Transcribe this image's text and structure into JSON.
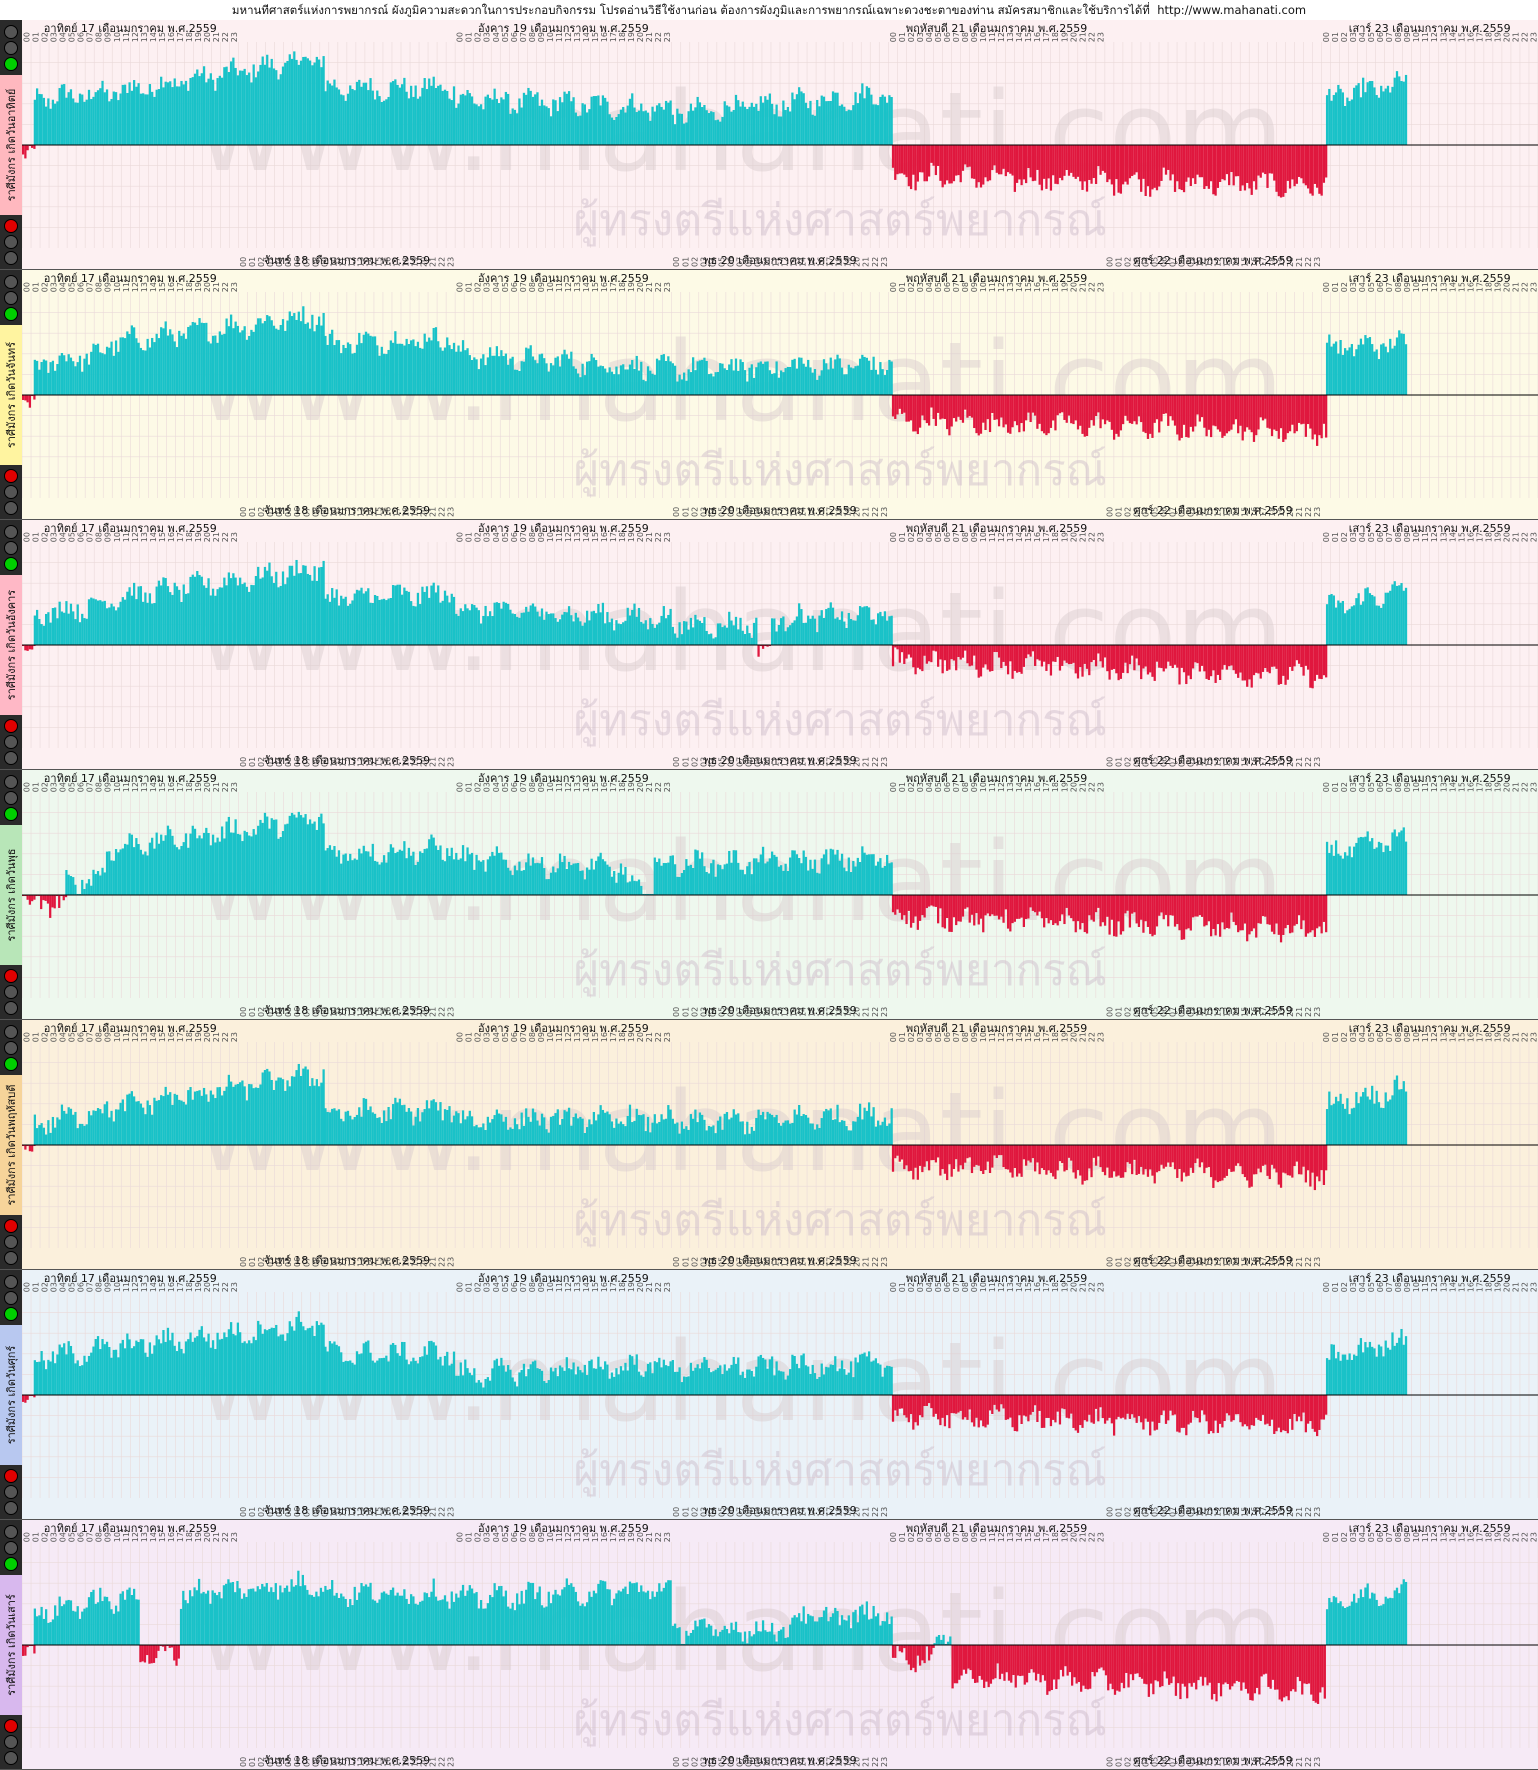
{
  "header": {
    "title": "มหานทีศาสตร์แห่งการพยากรณ์ ผังภูมิความสะดวกในการประกอบกิจกรรม โปรดอ่านวิธีใช้งานก่อน ต้องการผังภูมิและการพยากรณ์เฉพาะดวงชะตาของท่าน สมัครสมาชิกและใช้บริการได้ที่",
    "url": "http://www.mahanati.com"
  },
  "watermark": {
    "site_text": "www.mahanati.com",
    "thai_text": "ผู้ทรงตรีแห่งศาสตร์พยากรณ์"
  },
  "colors": {
    "positive": "#19c2c8",
    "positive_line": "#00a9b0",
    "negative": "#e0173e",
    "negative_line": "#c80030",
    "lamp_green": "#00d000",
    "lamp_red": "#e00000",
    "lamp_off": "#555555"
  },
  "chart_data": {
    "type": "bar",
    "hours_per_day": 24,
    "hour_labels": [
      "00",
      "01",
      "02",
      "03",
      "04",
      "05",
      "06",
      "07",
      "08",
      "09",
      "10",
      "11",
      "12",
      "13",
      "14",
      "15",
      "16",
      "17",
      "18",
      "19",
      "20",
      "21",
      "22",
      "23"
    ],
    "top_days": [
      {
        "label": "อาทิตย์ 17 เดือนมกราคม พ.ศ.2559",
        "start_hour": 0
      },
      {
        "label": "อังคาร 19 เดือนมกราคม พ.ศ.2559",
        "start_hour": 48
      },
      {
        "label": "พฤหัสบดี 21 เดือนมกราคม พ.ศ.2559",
        "start_hour": 96
      },
      {
        "label": "เสาร์ 23 เดือนมกราคม พ.ศ.2559",
        "start_hour": 144
      }
    ],
    "bottom_days": [
      {
        "label": "จันทร์ 18 เดือนมกราคม พ.ศ.2559",
        "start_hour": 24
      },
      {
        "label": "พุธ 20 เดือนมกราคม พ.ศ.2559",
        "start_hour": 72
      },
      {
        "label": "ศุกร์ 22 เดือนมกราคม พ.ศ.2559",
        "start_hour": 120
      }
    ],
    "ylim": [
      -1,
      1
    ],
    "panels": [
      {
        "label": "ราศีมังกร เกิดวันอาทิตย์",
        "bg": "#fdf0f2",
        "tab": "#ffb8bf",
        "segments": [
          [
            0,
            1.3,
            -0.12,
            -0.12
          ],
          [
            1.3,
            9.3,
            0.45,
            0.5
          ],
          [
            9.3,
            33.5,
            0.5,
            0.85
          ],
          [
            33.5,
            48,
            0.55,
            0.55
          ],
          [
            48,
            72,
            0.45,
            0.35
          ],
          [
            72,
            96.4,
            0.3,
            0.5
          ],
          [
            96.4,
            144.5,
            -0.3,
            -0.4
          ],
          [
            144.5,
            153.5,
            0.45,
            0.6
          ]
        ]
      },
      {
        "label": "ราศีมังกร เกิดวันจันทร์",
        "bg": "#fdfae6",
        "tab": "#fff4a0",
        "segments": [
          [
            0,
            1.3,
            -0.12,
            -0.12
          ],
          [
            1.3,
            9.3,
            0.3,
            0.4
          ],
          [
            9.3,
            33.5,
            0.5,
            0.78
          ],
          [
            33.5,
            48,
            0.5,
            0.55
          ],
          [
            48,
            72,
            0.4,
            0.25
          ],
          [
            72,
            96.4,
            0.25,
            0.3
          ],
          [
            96.4,
            144.5,
            -0.25,
            -0.35
          ],
          [
            144.5,
            153.5,
            0.45,
            0.5
          ]
        ]
      },
      {
        "label": "ราศีมังกร เกิดวันอังคาร",
        "bg": "#fdf0f2",
        "tab": "#ffb8c6",
        "segments": [
          [
            0,
            1.3,
            -0.02,
            -0.02
          ],
          [
            1.3,
            9.3,
            0.3,
            0.4
          ],
          [
            9.3,
            33.5,
            0.45,
            0.75
          ],
          [
            33.5,
            48,
            0.45,
            0.5
          ],
          [
            48,
            72,
            0.35,
            0.25
          ],
          [
            72,
            81.5,
            0.2,
            0.2
          ],
          [
            81.5,
            83,
            -0.05,
            -0.05
          ],
          [
            83,
            96.4,
            0.25,
            0.3
          ],
          [
            96.4,
            144.5,
            -0.15,
            -0.3
          ],
          [
            144.5,
            153.5,
            0.35,
            0.55
          ]
        ]
      },
      {
        "label": "ราศีมังกร เกิดวันพุธ",
        "bg": "#eef8ee",
        "tab": "#b8e6b8",
        "segments": [
          [
            0,
            4.8,
            -0.08,
            -0.08
          ],
          [
            4.8,
            9.3,
            0.1,
            0.2
          ],
          [
            9.3,
            33.5,
            0.45,
            0.75
          ],
          [
            33.5,
            48,
            0.4,
            0.45
          ],
          [
            48,
            67,
            0.35,
            0.25
          ],
          [
            67,
            70,
            0.05,
            0.05
          ],
          [
            70,
            96.4,
            0.3,
            0.35
          ],
          [
            96.4,
            144.5,
            -0.2,
            -0.35
          ],
          [
            144.5,
            153.5,
            0.4,
            0.55
          ]
        ]
      },
      {
        "label": "ราศีมังกร เกิดวันพฤหัสบดี",
        "bg": "#fbf0dc",
        "tab": "#f6d49a",
        "segments": [
          [
            0,
            1.3,
            -0.05,
            -0.05
          ],
          [
            1.3,
            9.3,
            0.2,
            0.35
          ],
          [
            9.3,
            33.5,
            0.35,
            0.7
          ],
          [
            33.5,
            48,
            0.3,
            0.35
          ],
          [
            48,
            72,
            0.25,
            0.25
          ],
          [
            72,
            96.4,
            0.2,
            0.3
          ],
          [
            96.4,
            144.5,
            -0.2,
            -0.3
          ],
          [
            144.5,
            153.5,
            0.4,
            0.55
          ]
        ]
      },
      {
        "label": "ราศีมังกร เกิดวันศุกร์",
        "bg": "#eaf2f8",
        "tab": "#b8c8f0",
        "segments": [
          [
            0,
            1.3,
            -0.05,
            -0.05
          ],
          [
            1.3,
            9.3,
            0.35,
            0.45
          ],
          [
            9.3,
            33.5,
            0.45,
            0.7
          ],
          [
            33.5,
            48,
            0.4,
            0.4
          ],
          [
            48,
            72,
            0.2,
            0.3
          ],
          [
            72,
            96.4,
            0.25,
            0.3
          ],
          [
            96.4,
            144.5,
            -0.2,
            -0.3
          ],
          [
            144.5,
            153.5,
            0.35,
            0.55
          ]
        ]
      },
      {
        "label": "ราศีมังกร เกิดวันเสาร์",
        "bg": "#f6eaf6",
        "tab": "#d8b8ee",
        "segments": [
          [
            0,
            1.3,
            -0.05,
            -0.05
          ],
          [
            1.3,
            9.3,
            0.3,
            0.45
          ],
          [
            9.3,
            13,
            0.4,
            0.5
          ],
          [
            13,
            17.5,
            -0.1,
            -0.1
          ],
          [
            17.5,
            33.5,
            0.5,
            0.6
          ],
          [
            33.5,
            48,
            0.5,
            0.5
          ],
          [
            48,
            72,
            0.45,
            0.55
          ],
          [
            72,
            85,
            0.15,
            0.15
          ],
          [
            85,
            96.4,
            0.25,
            0.3
          ],
          [
            96.4,
            101,
            -0.12,
            -0.12
          ],
          [
            101,
            103,
            0.05,
            0.05
          ],
          [
            103,
            144.5,
            -0.3,
            -0.45
          ],
          [
            144.5,
            153.5,
            0.4,
            0.55
          ]
        ]
      }
    ]
  }
}
